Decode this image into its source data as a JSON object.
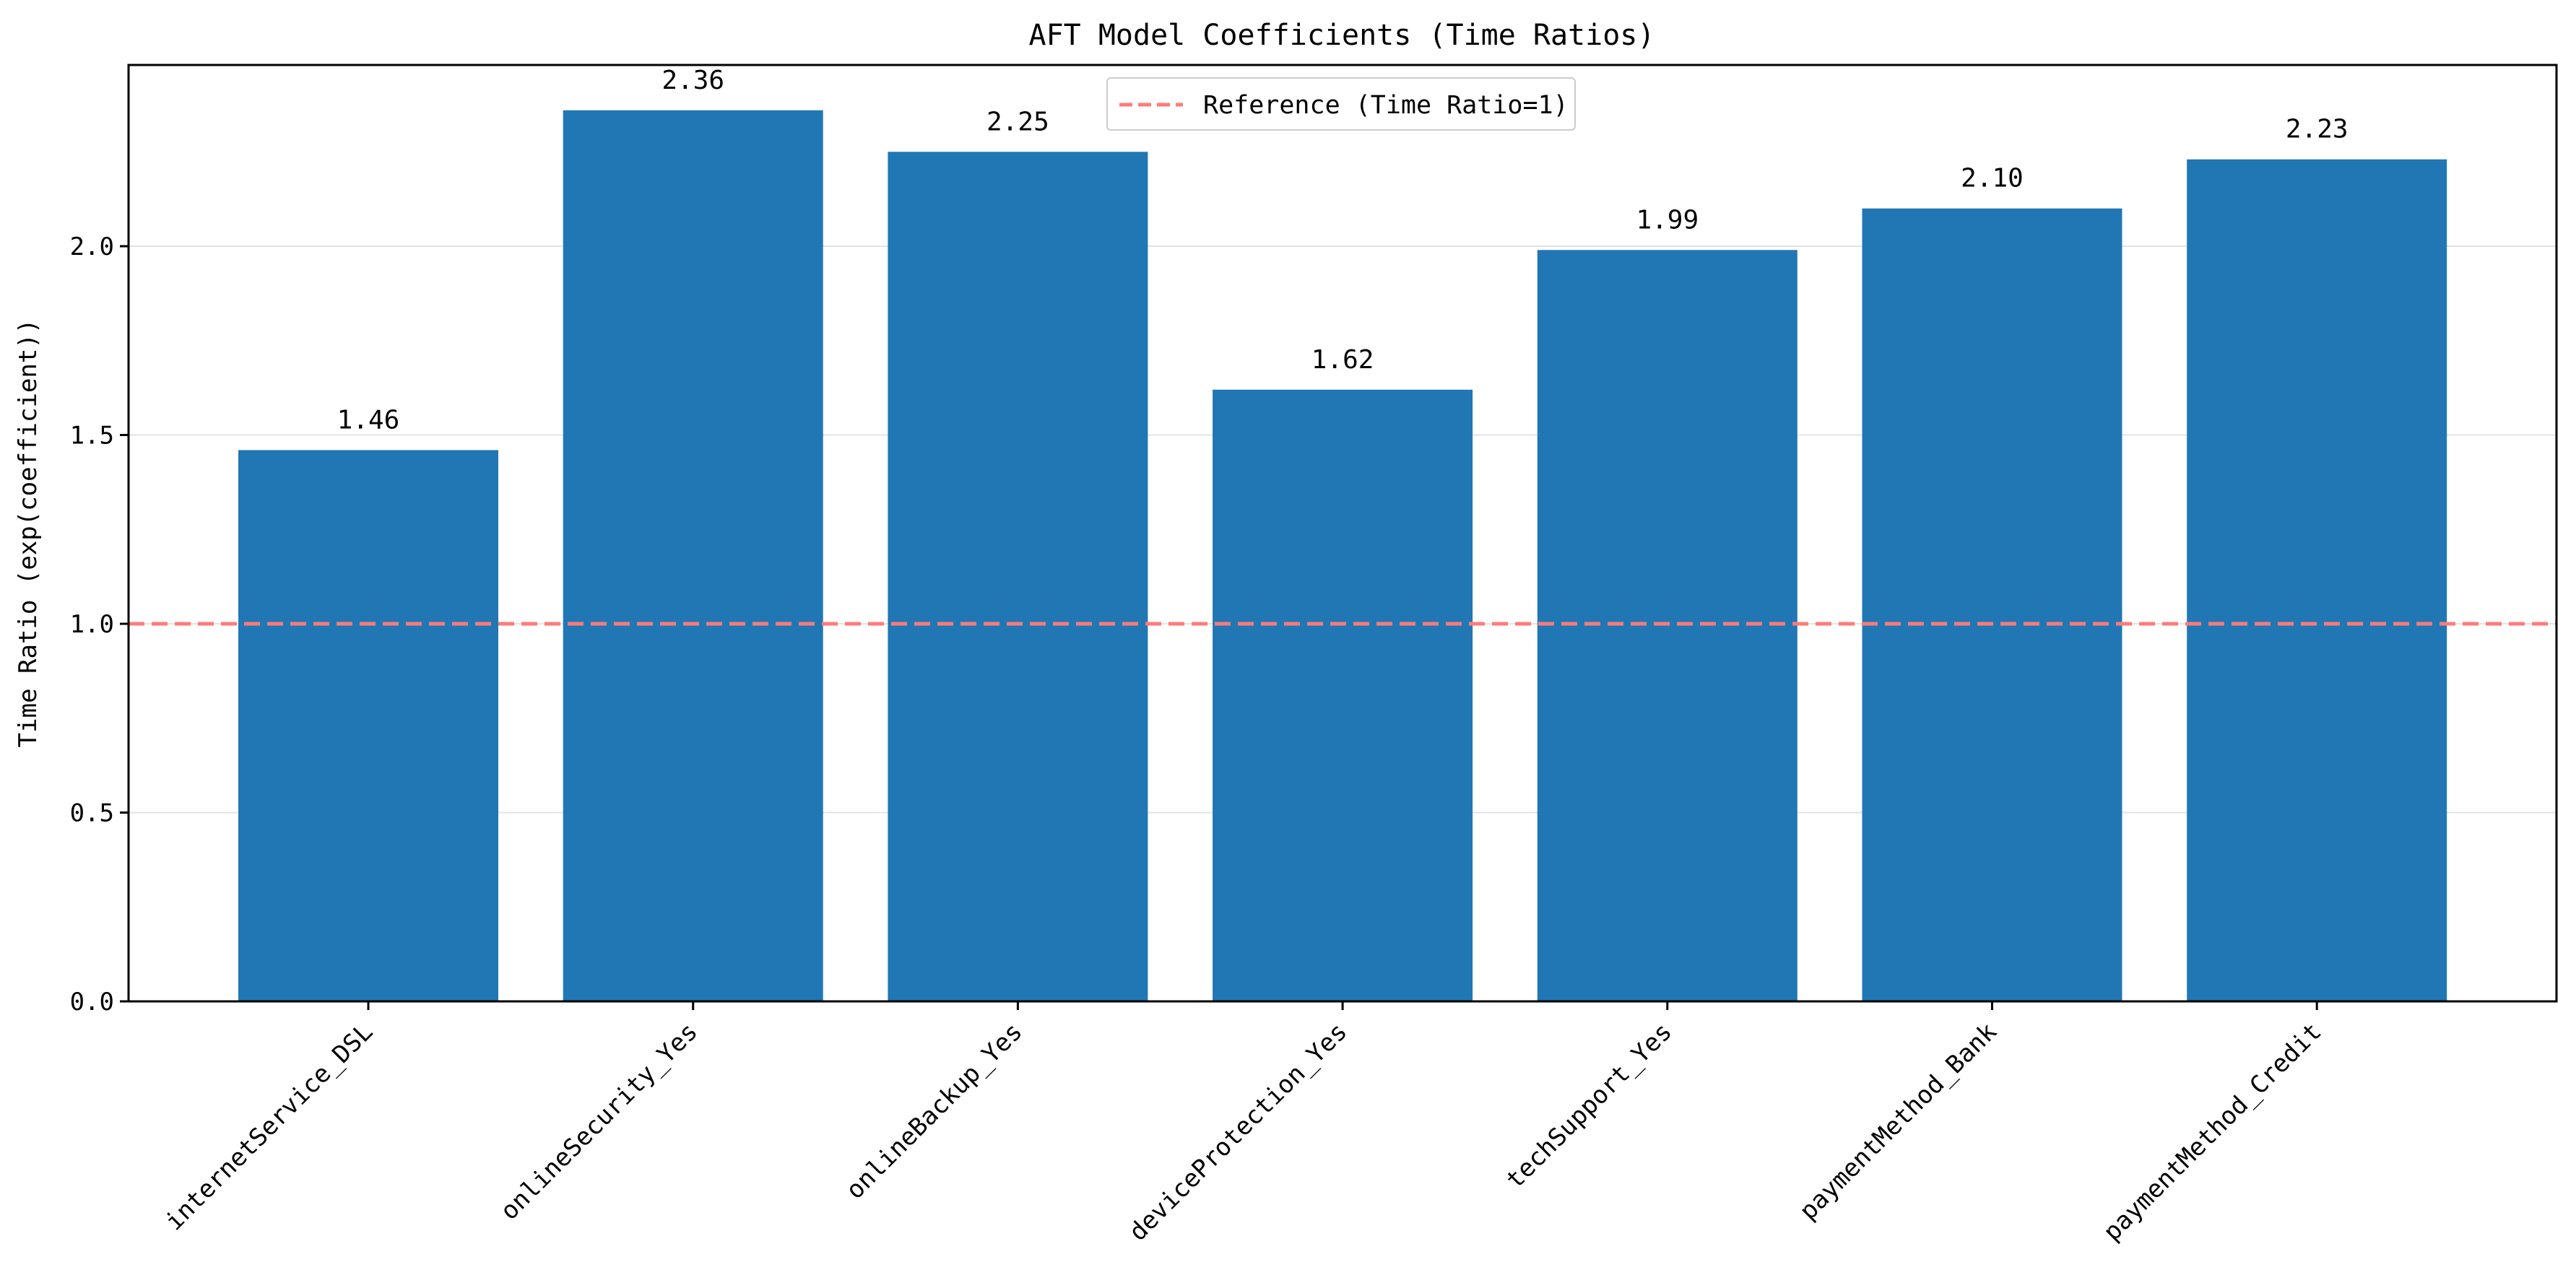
{
  "chart_data": {
    "type": "bar",
    "title": "AFT Model Coefficients (Time Ratios)",
    "xlabel": "",
    "ylabel": "Time Ratio (exp(coefficient))",
    "categories": [
      "internetService_DSL",
      "onlineSecurity_Yes",
      "onlineBackup_Yes",
      "deviceProtection_Yes",
      "techSupport_Yes",
      "paymentMethod_Bank",
      "paymentMethod_Credit"
    ],
    "values": [
      1.46,
      2.36,
      2.25,
      1.62,
      1.99,
      2.1,
      2.23
    ],
    "value_labels": [
      "1.46",
      "2.36",
      "2.25",
      "1.62",
      "1.99",
      "2.10",
      "2.23"
    ],
    "ylim": [
      0,
      2.48
    ],
    "yticks": [
      0.0,
      0.5,
      1.0,
      1.5,
      2.0
    ],
    "ytick_labels": [
      "0.0",
      "0.5",
      "1.0",
      "1.5",
      "2.0"
    ],
    "grid": "y",
    "legend_position": "top-center",
    "reference_line": {
      "value": 1.0,
      "label": "Reference (Time Ratio=1)",
      "style": "dashed",
      "color": "#ff7b7b"
    },
    "bar_color": "#2077b4"
  }
}
